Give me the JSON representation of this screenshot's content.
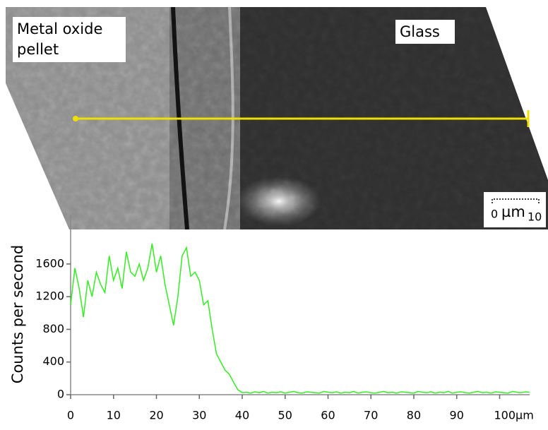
{
  "chart_data": {
    "type": "line",
    "image_labels": [
      "Metal oxide",
      "pellet",
      "Glass"
    ],
    "scale_bar": {
      "start": "0",
      "unit": "µm",
      "end": "10"
    },
    "y_label": "Counts per second",
    "x": [
      0,
      1,
      2,
      3,
      4,
      5,
      6,
      7,
      8,
      9,
      10,
      11,
      12,
      13,
      14,
      15,
      16,
      17,
      18,
      19,
      20,
      21,
      22,
      23,
      24,
      25,
      26,
      27,
      28,
      29,
      30,
      31,
      32,
      33,
      34,
      35,
      36,
      37,
      38,
      39,
      40,
      41,
      42,
      43,
      44,
      45,
      46,
      47,
      48,
      49,
      50,
      51,
      52,
      53,
      54,
      55,
      56,
      57,
      58,
      59,
      60,
      61,
      62,
      63,
      64,
      65,
      66,
      67,
      68,
      69,
      70,
      71,
      72,
      73,
      74,
      75,
      76,
      77,
      78,
      79,
      80,
      81,
      82,
      83,
      84,
      85,
      86,
      87,
      88,
      89,
      90,
      91,
      92,
      93,
      94,
      95,
      96,
      97,
      98,
      99,
      100,
      101,
      102,
      103,
      104,
      105,
      106,
      107
    ],
    "series": [
      {
        "color": "#33ee22",
        "values": [
          1100,
          1550,
          1300,
          950,
          1400,
          1200,
          1500,
          1350,
          1250,
          1700,
          1400,
          1550,
          1300,
          1750,
          1500,
          1450,
          1600,
          1400,
          1550,
          1850,
          1500,
          1700,
          1350,
          1100,
          850,
          1200,
          1700,
          1800,
          1450,
          1500,
          1400,
          1100,
          1150,
          800,
          500,
          400,
          300,
          250,
          150,
          60,
          25,
          30,
          20,
          35,
          25,
          40,
          20,
          30,
          25,
          35,
          20,
          30,
          40,
          25,
          20,
          35,
          30,
          25,
          20,
          40,
          30,
          25,
          35,
          20,
          30,
          25,
          40,
          20,
          30,
          35,
          25,
          20,
          30,
          40,
          25,
          30,
          20,
          35,
          30,
          25,
          20,
          40,
          30,
          25,
          35,
          20,
          30,
          25,
          40,
          20,
          30,
          35,
          25,
          20,
          30,
          40,
          25,
          30,
          20,
          35,
          30,
          25,
          20,
          40,
          30,
          25,
          35,
          30
        ]
      }
    ],
    "xlim": [
      0,
      107
    ],
    "ylim": [
      0,
      2200
    ],
    "xticks": [
      0,
      10,
      20,
      30,
      40,
      50,
      60,
      70,
      80,
      90,
      {
        "value": 100,
        "label": "100µm"
      }
    ],
    "yticks": [
      0,
      400,
      800,
      1200,
      1600
    ]
  }
}
